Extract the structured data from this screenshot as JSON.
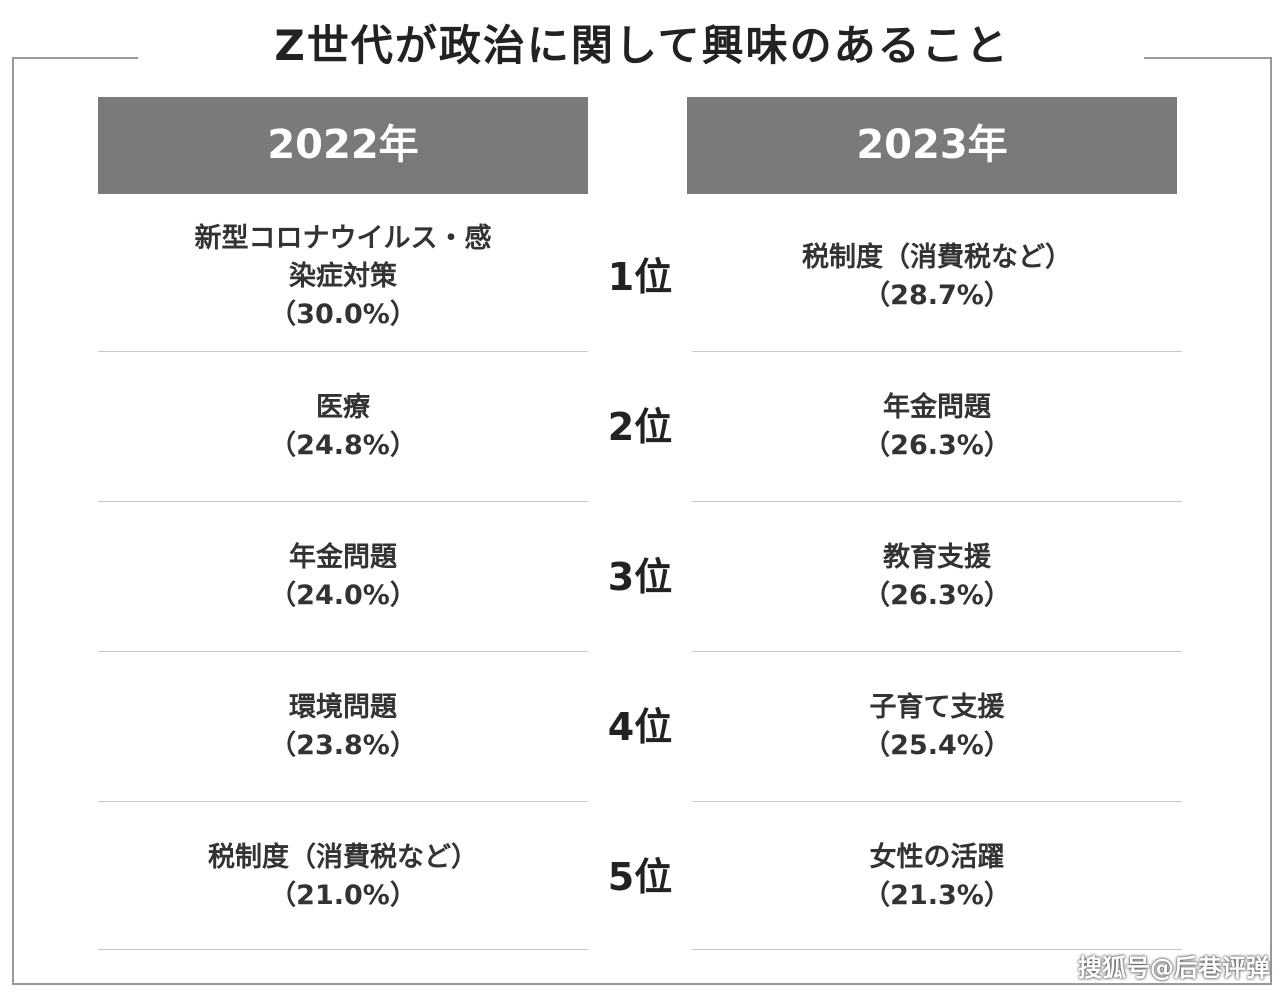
{
  "title": "Z世代が政治に関して興味のあること",
  "years": {
    "left": "2022年",
    "right": "2023年"
  },
  "rows": [
    {
      "rank": "1位",
      "left_topic": "新型コロナウイルス・感染症対策",
      "left_pct": "（30.0%）",
      "right_topic": "税制度（消費税など）",
      "right_pct": "（28.7%）"
    },
    {
      "rank": "2位",
      "left_topic": "医療",
      "left_pct": "（24.8%）",
      "right_topic": "年金問題",
      "right_pct": "（26.3%）"
    },
    {
      "rank": "3位",
      "left_topic": "年金問題",
      "left_pct": "（24.0%）",
      "right_topic": "教育支援",
      "right_pct": "（26.3%）"
    },
    {
      "rank": "4位",
      "left_topic": "環境問題",
      "left_pct": "（23.8%）",
      "right_topic": "子育て支援",
      "right_pct": "（25.4%）"
    },
    {
      "rank": "5位",
      "left_topic": "税制度（消費税など）",
      "left_pct": "（21.0%）",
      "right_topic": "女性の活躍",
      "right_pct": "（21.3%）"
    }
  ],
  "watermark": "搜狐号@后巷评弹",
  "colors": {
    "header_bg": "#7a7a7a",
    "header_text": "#ffffff",
    "text": "#333333",
    "divider": "#c8c8c8"
  }
}
